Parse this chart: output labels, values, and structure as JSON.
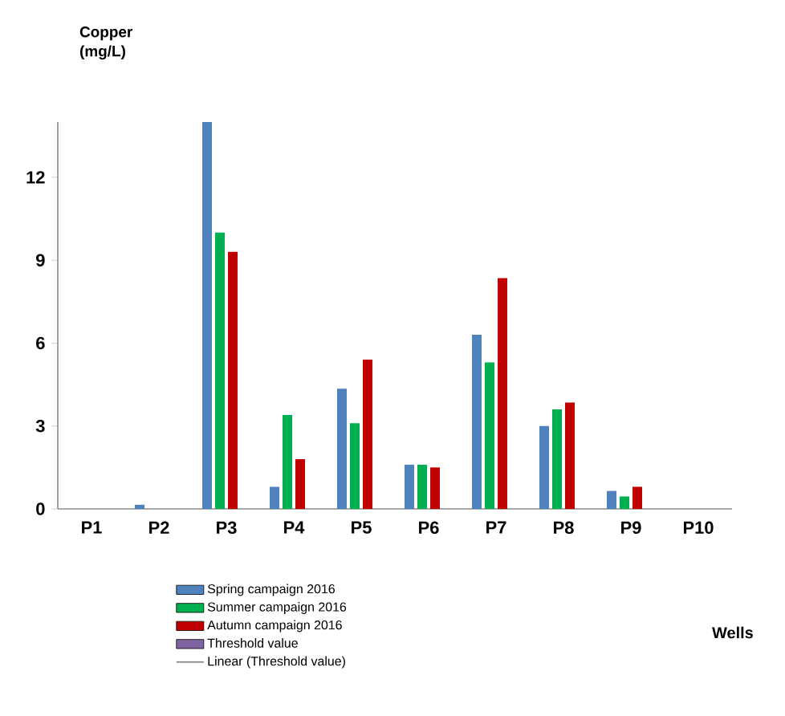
{
  "chart_data": {
    "type": "bar",
    "ylabel": "Copper (mg/L)",
    "annotations": [
      "Wells"
    ],
    "categories": [
      "P1",
      "P2",
      "P3",
      "P4",
      "P5",
      "P6",
      "P7",
      "P8",
      "P9",
      "P10"
    ],
    "series": [
      {
        "name": "Spring campaign 2016",
        "color": "#4f81bd",
        "values": [
          null,
          0.15,
          14.0,
          0.8,
          4.35,
          1.6,
          6.3,
          3.0,
          0.65,
          null
        ]
      },
      {
        "name": "Summer campaign 2016",
        "color": "#00b050",
        "values": [
          null,
          null,
          10.0,
          3.4,
          3.1,
          1.6,
          5.3,
          3.6,
          0.45,
          null
        ]
      },
      {
        "name": "Autumn campaign 2016",
        "color": "#c00000",
        "values": [
          null,
          null,
          9.3,
          1.8,
          5.4,
          1.5,
          8.35,
          3.85,
          0.8,
          null
        ]
      },
      {
        "name": "Threshold value",
        "color": "#8064a2",
        "values": [
          null,
          null,
          null,
          null,
          null,
          null,
          null,
          null,
          null,
          null
        ]
      },
      {
        "name": "Linear (Threshold value)",
        "type": "line",
        "color": "#000000",
        "values": [
          null,
          null,
          null,
          null,
          null,
          null,
          null,
          null,
          null,
          null
        ]
      }
    ],
    "ylim": [
      0,
      14
    ],
    "yticks": [
      0,
      3,
      6,
      9,
      12
    ],
    "legend": "bottom"
  }
}
